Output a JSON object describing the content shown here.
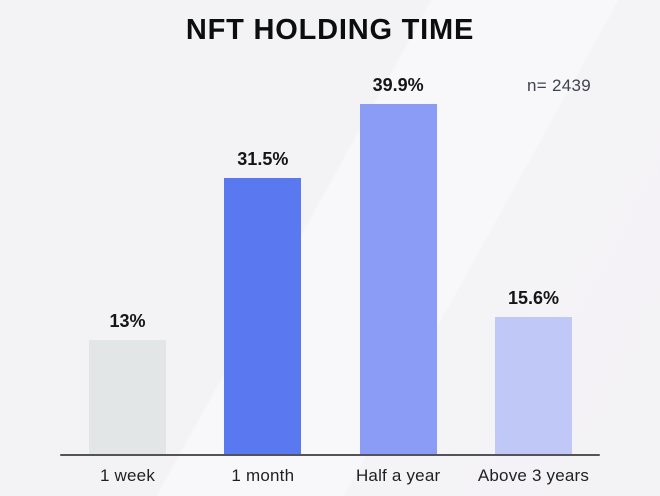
{
  "title": "NFT HOLDING TIME",
  "annotation": {
    "sample_size": "n= 2439"
  },
  "chart_data": {
    "type": "bar",
    "title": "NFT HOLDING TIME",
    "categories": [
      "1 week",
      "1 month",
      "Half a year",
      "Above 3 years"
    ],
    "values": [
      13,
      31.5,
      39.9,
      15.6
    ],
    "value_labels": [
      "13%",
      "31.5%",
      "39.9%",
      "15.6%"
    ],
    "unit": "%",
    "ylim": [
      0,
      45
    ],
    "grid": false,
    "legend": false,
    "annotations": [
      "n= 2439"
    ],
    "bar_colors": [
      "#e3e6e7",
      "#5a78ef",
      "#8a9cf5",
      "#bfc8f7"
    ],
    "xlabel": "",
    "ylabel": ""
  },
  "colors": {
    "background": "#f3f2f5",
    "axis_line": "#54535a",
    "title_text": "#0c0d10",
    "value_label_text": "#141519",
    "category_label_text": "#1e2024",
    "annotation_text": "#3e4450"
  }
}
